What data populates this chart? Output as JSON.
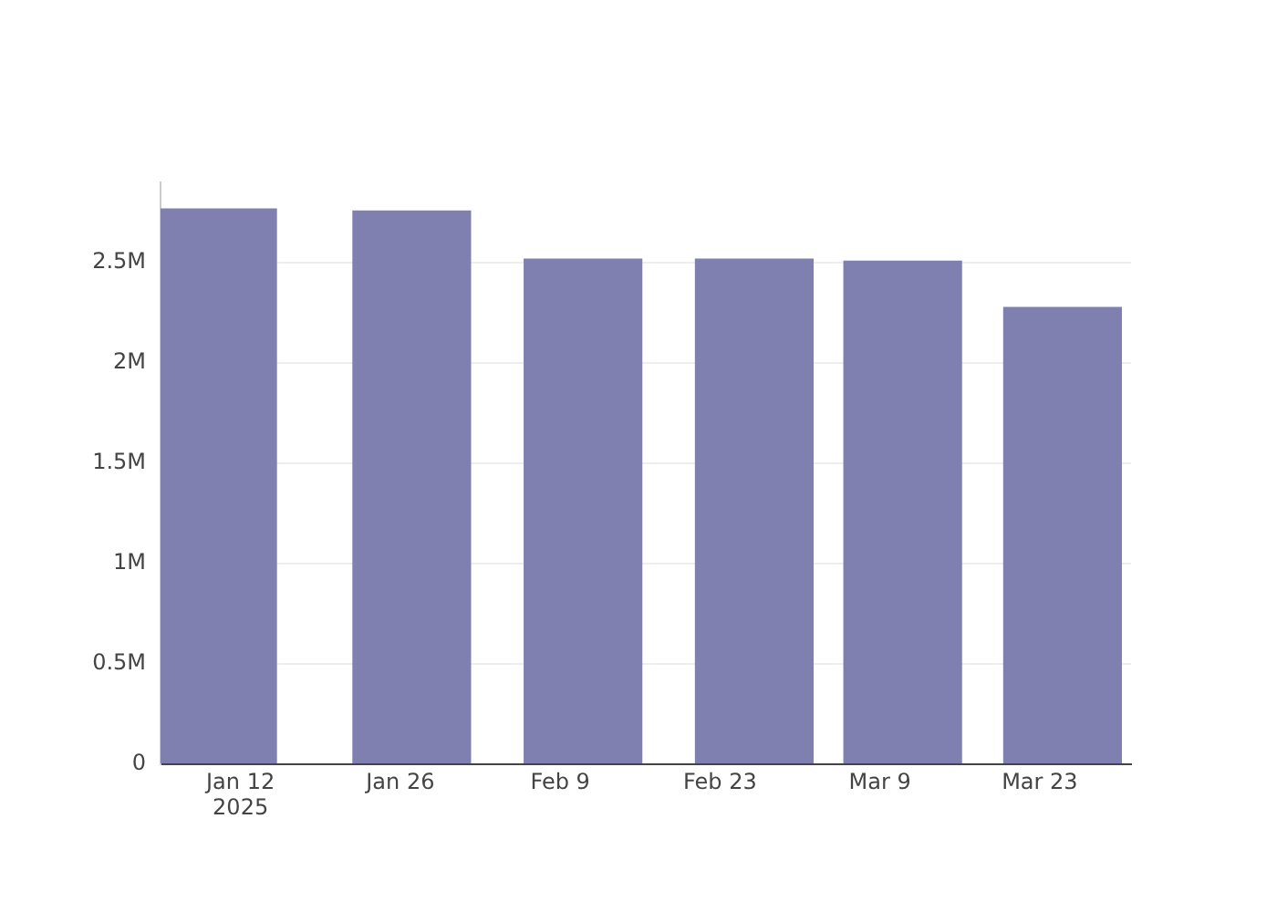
{
  "chart_data": {
    "type": "bar",
    "x": [
      "2025-01-10",
      "2025-01-27",
      "2025-02-11",
      "2025-02-26",
      "2025-03-11",
      "2025-03-25"
    ],
    "values": [
      2770000,
      2760000,
      2520000,
      2520000,
      2510000,
      2280000
    ],
    "color": "#7f7fb0",
    "xlim": [
      "2025-01-05",
      "2025-03-31"
    ],
    "xticks": [
      {
        "value": "2025-01-12",
        "label": "Jan 12\n2025"
      },
      {
        "value": "2025-01-26",
        "label": "Jan 26"
      },
      {
        "value": "2025-02-09",
        "label": "Feb 9"
      },
      {
        "value": "2025-02-23",
        "label": "Feb 23"
      },
      {
        "value": "2025-03-09",
        "label": "Mar 9"
      },
      {
        "value": "2025-03-23",
        "label": "Mar 23"
      }
    ],
    "ylim": [
      0,
      2900000
    ],
    "yticks": [
      0,
      {
        "value": 500000,
        "label": "0.5M"
      },
      {
        "value": 1000000,
        "label": "1M"
      },
      {
        "value": 1500000,
        "label": "1.5M"
      },
      {
        "value": 2000000,
        "label": "2M"
      },
      {
        "value": 2500000,
        "label": "2.5M"
      }
    ],
    "grid": "y",
    "legend": false
  }
}
